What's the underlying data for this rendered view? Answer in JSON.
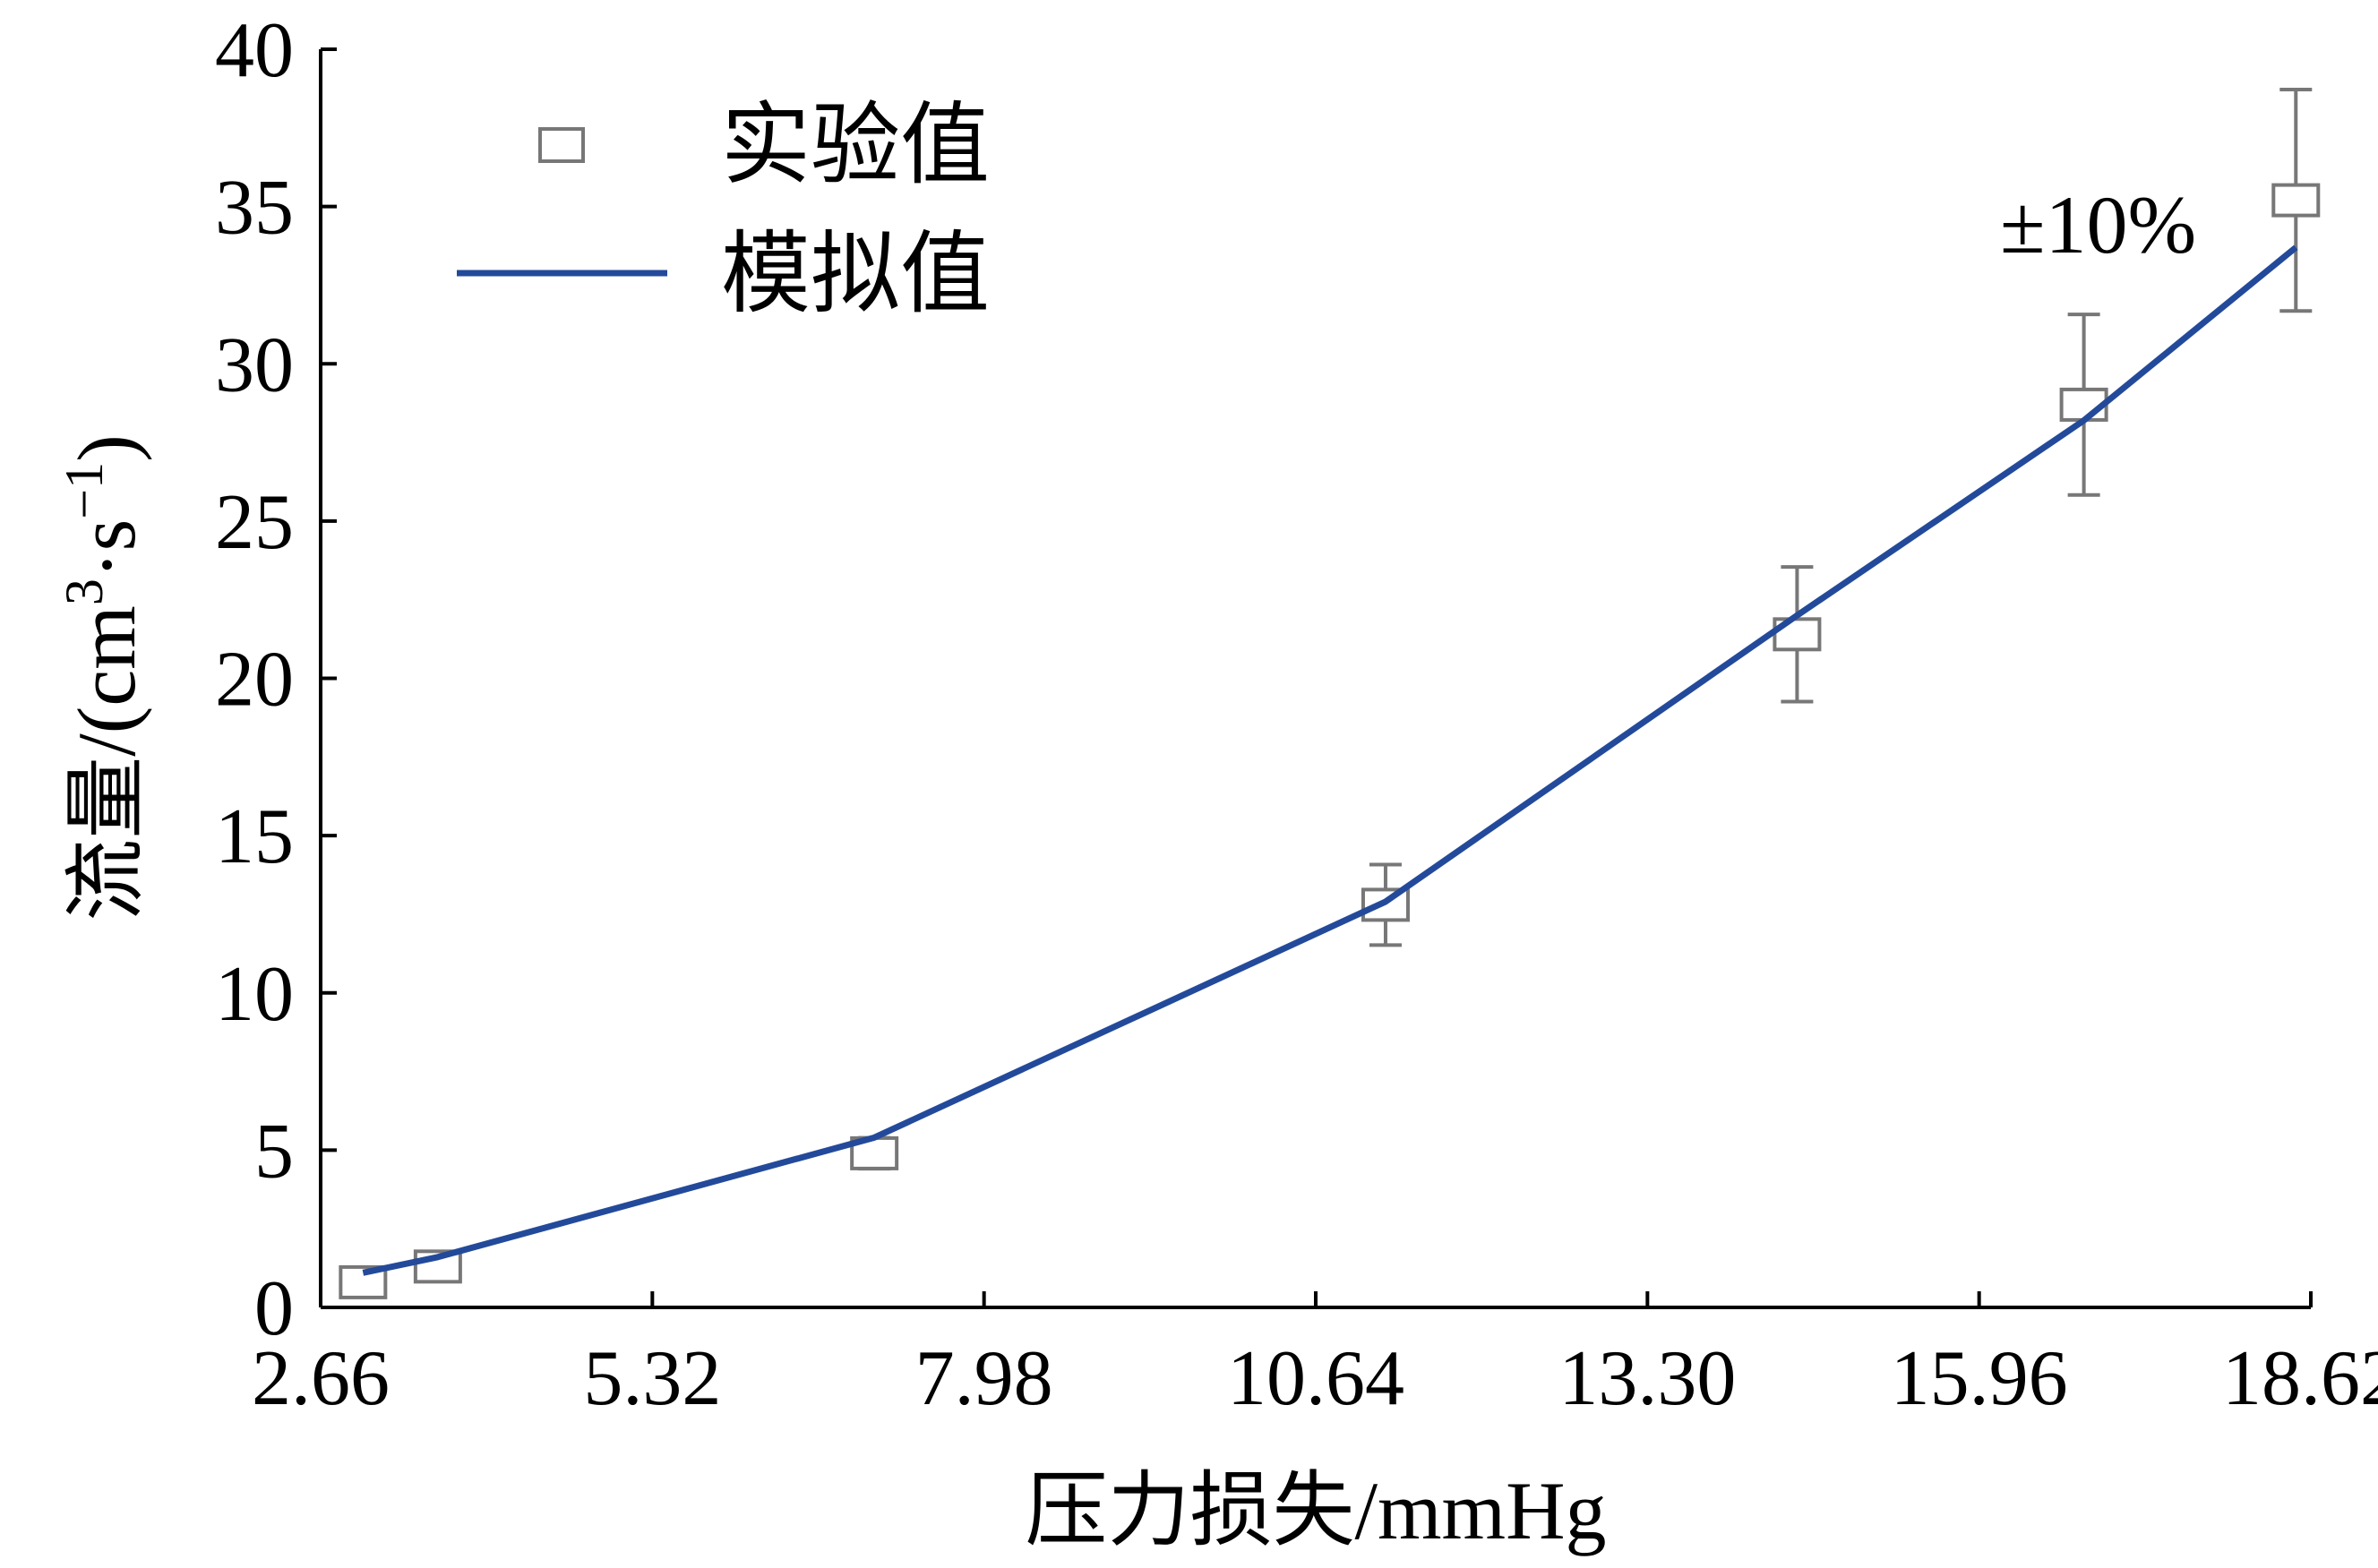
{
  "chart_data": {
    "type": "line",
    "xlabel": "压力损失/mmHg",
    "ylabel_main": "流量/(cm",
    "ylabel_sup1": "3",
    "ylabel_mid": "·s",
    "ylabel_sup2": "−1",
    "ylabel_end": ")",
    "x_ticks": [
      "2.66",
      "5.32",
      "7.98",
      "10.64",
      "13.30",
      "15.96",
      "18.62"
    ],
    "x_tick_values": [
      2.66,
      5.32,
      7.98,
      10.64,
      13.3,
      15.96,
      18.62
    ],
    "y_ticks": [
      "0",
      "5",
      "10",
      "15",
      "20",
      "25",
      "30",
      "35",
      "40"
    ],
    "y_tick_values": [
      0,
      5,
      10,
      15,
      20,
      25,
      30,
      35,
      40
    ],
    "xlim": [
      2.66,
      18.62
    ],
    "ylim": [
      0,
      40
    ],
    "grid": false,
    "legend_position": "top-left",
    "annotation": "±10%",
    "series": [
      {
        "name": "实验值",
        "kind": "scatter",
        "marker": "square",
        "color": "#777777",
        "error": "±10%",
        "x": [
          3.0,
          3.6,
          7.1,
          11.2,
          14.5,
          16.8,
          18.5
        ],
        "y": [
          0.8,
          1.3,
          4.9,
          12.8,
          21.4,
          28.7,
          35.2
        ]
      },
      {
        "name": "模拟值",
        "kind": "line",
        "color": "#234a9a",
        "x": [
          3.0,
          3.6,
          7.1,
          11.2,
          14.5,
          16.8,
          18.5
        ],
        "y": [
          1.1,
          1.6,
          5.4,
          12.9,
          22.0,
          28.2,
          33.7
        ]
      }
    ]
  }
}
